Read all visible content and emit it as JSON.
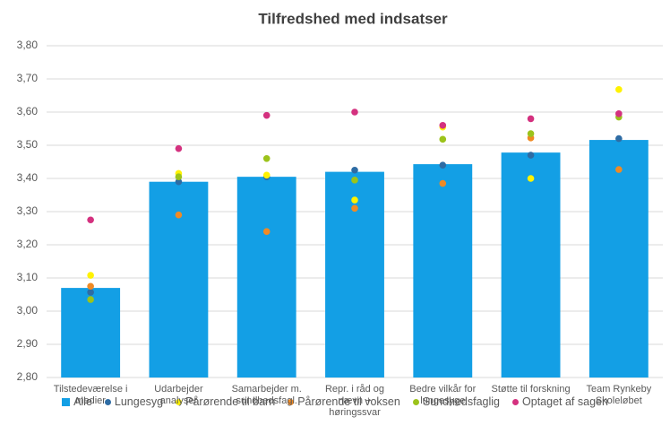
{
  "chart_data": {
    "type": "bar",
    "title": "Tilfredshed med indsatser",
    "categories": [
      "Tilstedeværelse i medier",
      "Udarbejder analyser",
      "Samarbejder m. sundhedsfagl.",
      "Repr. i råd og nævn + høringssvar",
      "Bedre vilkår for lungesyge",
      "Støtte til forskning",
      "Team Rynkeby Skoleløbet"
    ],
    "series": [
      {
        "name": "Alle",
        "type": "bar",
        "color": "#139fe5",
        "values": [
          3.07,
          3.39,
          3.405,
          3.42,
          3.443,
          3.478,
          3.516
        ]
      },
      {
        "name": "Lungesyg",
        "type": "scatter",
        "color": "#2e6ca4",
        "values": [
          3.057,
          3.39,
          3.405,
          3.425,
          3.44,
          3.47,
          3.52
        ]
      },
      {
        "name": "Pårørende til barn",
        "type": "scatter",
        "color": "#fff200",
        "values": [
          3.108,
          3.415,
          3.41,
          3.335,
          3.555,
          3.4,
          3.668
        ]
      },
      {
        "name": "Pårørende til voksen",
        "type": "scatter",
        "color": "#f08a24",
        "values": [
          3.075,
          3.29,
          3.24,
          3.31,
          3.385,
          3.522,
          3.427
        ]
      },
      {
        "name": "Sundhedsfaglig",
        "type": "scatter",
        "color": "#9cc31b",
        "values": [
          3.035,
          3.405,
          3.46,
          3.395,
          3.518,
          3.535,
          3.585
        ]
      },
      {
        "name": "Optaget af sagen",
        "type": "scatter",
        "color": "#d4317f",
        "values": [
          3.275,
          3.49,
          3.59,
          3.6,
          3.56,
          3.58,
          3.595
        ]
      }
    ],
    "ylim": [
      2.8,
      3.8
    ],
    "yticks": [
      {
        "value": 2.8,
        "label": "2,80"
      },
      {
        "value": 2.9,
        "label": "2,90"
      },
      {
        "value": 3.0,
        "label": "3,00"
      },
      {
        "value": 3.1,
        "label": "3,10"
      },
      {
        "value": 3.2,
        "label": "3,20"
      },
      {
        "value": 3.3,
        "label": "3,30"
      },
      {
        "value": 3.4,
        "label": "3,40"
      },
      {
        "value": 3.5,
        "label": "3,50"
      },
      {
        "value": 3.6,
        "label": "3,60"
      },
      {
        "value": 3.7,
        "label": "3,70"
      },
      {
        "value": 3.8,
        "label": "3,80"
      }
    ],
    "grid": true
  }
}
